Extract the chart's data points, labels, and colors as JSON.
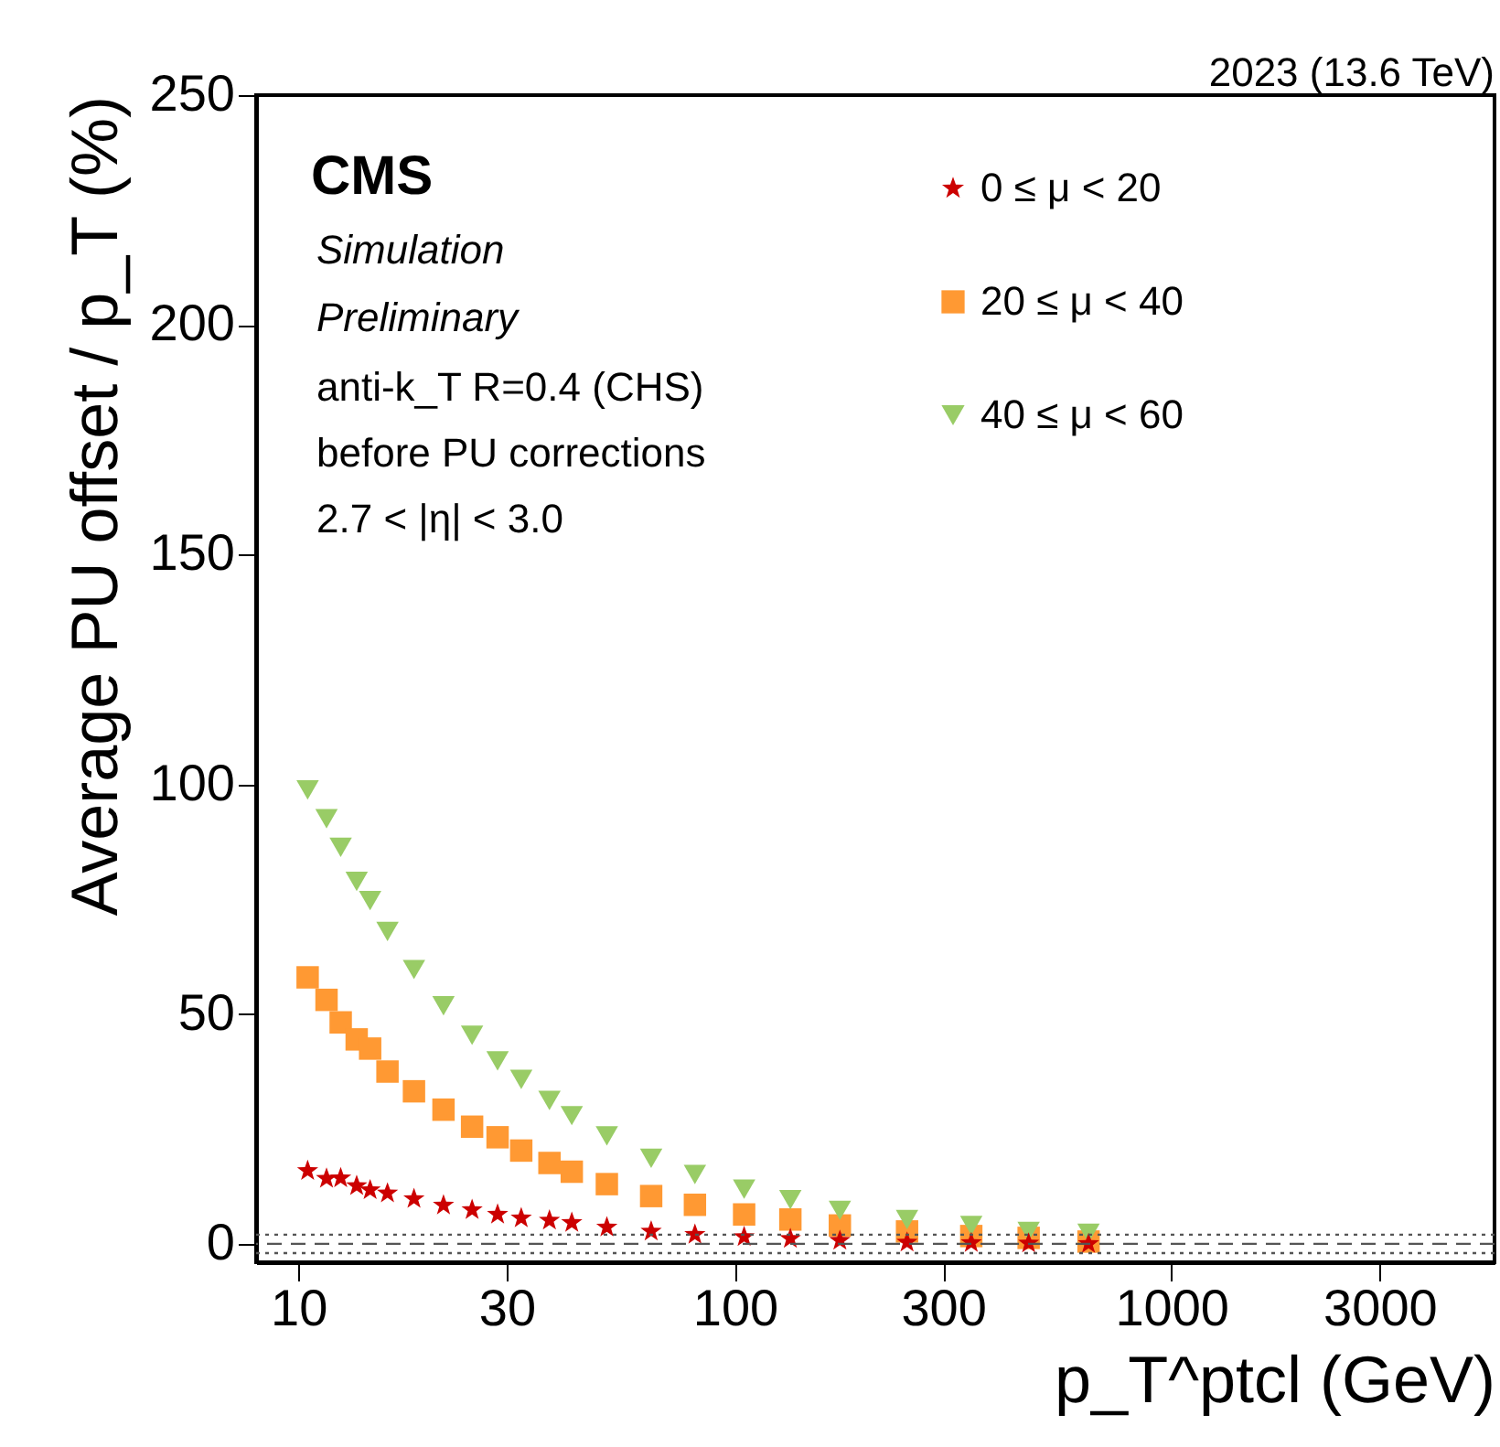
{
  "chart_data": {
    "type": "scatter",
    "xlabel": "p_T^ptcl (GeV)",
    "ylabel": "Average PU offset / p_T (%)",
    "annotations": [
      "2023 (13.6 TeV)",
      "CMS",
      "Simulation",
      "Preliminary",
      "anti-k_T R=0.4 (CHS)",
      "before PU corrections",
      "2.7 < |η| < 3.0"
    ],
    "x": [
      10.5,
      11.6,
      12.5,
      13.6,
      14.6,
      16.0,
      18.4,
      21.5,
      25.0,
      28.6,
      32.4,
      37.6,
      42.3,
      50.9,
      64.3,
      81,
      105,
      134,
      174,
      248,
      348,
      471,
      646
    ],
    "series": [
      {
        "name": "0 ≤ μ < 20",
        "color": "#cc0000",
        "marker": "star",
        "values": [
          15.9,
          14.2,
          14.3,
          12.6,
          11.7,
          11.0,
          9.8,
          8.4,
          7.4,
          6.4,
          5.6,
          5.1,
          4.6,
          3.6,
          2.7,
          2.0,
          1.5,
          1.1,
          0.7,
          0.3,
          0.2,
          0.1,
          0.0
        ]
      },
      {
        "name": "20 ≤ μ < 40",
        "color": "#ff9933",
        "marker": "square",
        "values": [
          58.0,
          53.1,
          48.2,
          44.5,
          42.5,
          37.5,
          33.2,
          29.2,
          25.5,
          23.2,
          20.3,
          17.6,
          15.7,
          13.0,
          10.4,
          8.5,
          6.4,
          5.3,
          4.0,
          2.7,
          1.7,
          1.3,
          0.5
        ]
      },
      {
        "name": "40 ≤ μ < 60",
        "color": "#99cc66",
        "marker": "triangle",
        "values": [
          98.8,
          92.5,
          86.3,
          78.9,
          74.7,
          68.0,
          59.7,
          51.8,
          45.4,
          39.8,
          35.8,
          31.2,
          27.9,
          23.5,
          18.6,
          15.1,
          11.9,
          9.6,
          7.3,
          5.3,
          4.0,
          2.7,
          2.3
        ]
      }
    ],
    "log": "x",
    "xlim": [
      8,
      5500
    ],
    "xticks": [
      10,
      30,
      100,
      300,
      1000,
      3000
    ],
    "ylim": [
      -4,
      250
    ],
    "yticks": [
      0,
      50,
      100,
      150,
      200,
      250
    ],
    "ref_lines": [
      {
        "axis": "y",
        "value": 0,
        "color": "#555555",
        "line_style": "dashed"
      },
      {
        "axis": "y",
        "value": 2,
        "color": "#555555",
        "line_style": "dotted"
      },
      {
        "axis": "y",
        "value": -2,
        "color": "#555555",
        "line_style": "dotted"
      }
    ],
    "grid": false,
    "legend": "top right"
  }
}
